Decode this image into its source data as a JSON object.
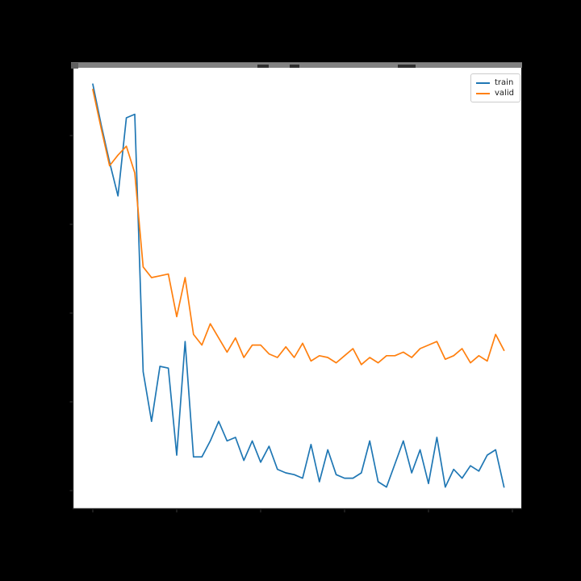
{
  "figure": {
    "background": "#000000",
    "plot_background": "#ffffff",
    "tick_color": "#2f2f2f",
    "spine_color": "#1f1f1f"
  },
  "legend": {
    "items": [
      {
        "label": "train",
        "color": "#1f77b4"
      },
      {
        "label": "valid",
        "color": "#ff7f0e"
      }
    ]
  },
  "chart_data": {
    "type": "line",
    "title": "",
    "title_visible": false,
    "xlabel": "",
    "ylabel": "",
    "tick_labels_visible": false,
    "grid": false,
    "legend_position": "upper right",
    "x": [
      0,
      1,
      2,
      3,
      4,
      5,
      6,
      7,
      8,
      9,
      10,
      11,
      12,
      13,
      14,
      15,
      16,
      17,
      18,
      19,
      20,
      21,
      22,
      23,
      24,
      25,
      26,
      27,
      28,
      29,
      30,
      31,
      32,
      33,
      34,
      35,
      36,
      37,
      38,
      39,
      40,
      41,
      42,
      43,
      44,
      45,
      46,
      47,
      48,
      49
    ],
    "x_ticks_est": [
      0,
      10,
      20,
      30,
      40,
      50
    ],
    "y_ticks_est": [
      0.5,
      1.0,
      1.5,
      2.0,
      2.5
    ],
    "xlim": [
      -2.5,
      52.5
    ],
    "ylim": [
      0.39,
      2.89
    ],
    "series": [
      {
        "name": "train",
        "color": "#1f77b4",
        "values": [
          2.79,
          2.56,
          2.35,
          2.16,
          2.6,
          2.62,
          1.17,
          0.89,
          1.2,
          1.19,
          0.7,
          1.34,
          0.69,
          0.69,
          0.78,
          0.89,
          0.78,
          0.8,
          0.67,
          0.78,
          0.66,
          0.75,
          0.62,
          0.6,
          0.59,
          0.57,
          0.76,
          0.55,
          0.73,
          0.59,
          0.57,
          0.57,
          0.6,
          0.78,
          0.55,
          0.52,
          0.65,
          0.78,
          0.6,
          0.73,
          0.54,
          0.8,
          0.52,
          0.62,
          0.57,
          0.64,
          0.61,
          0.7,
          0.73,
          0.52
        ]
      },
      {
        "name": "valid",
        "color": "#ff7f0e",
        "values": [
          2.76,
          2.54,
          2.33,
          2.39,
          2.44,
          2.29,
          1.76,
          1.7,
          1.71,
          1.72,
          1.48,
          1.7,
          1.38,
          1.32,
          1.44,
          1.36,
          1.28,
          1.36,
          1.25,
          1.32,
          1.32,
          1.27,
          1.25,
          1.31,
          1.25,
          1.33,
          1.23,
          1.26,
          1.25,
          1.22,
          1.26,
          1.3,
          1.21,
          1.25,
          1.22,
          1.26,
          1.26,
          1.28,
          1.25,
          1.3,
          1.32,
          1.34,
          1.24,
          1.26,
          1.3,
          1.22,
          1.26,
          1.23,
          1.38,
          1.29
        ]
      }
    ]
  }
}
